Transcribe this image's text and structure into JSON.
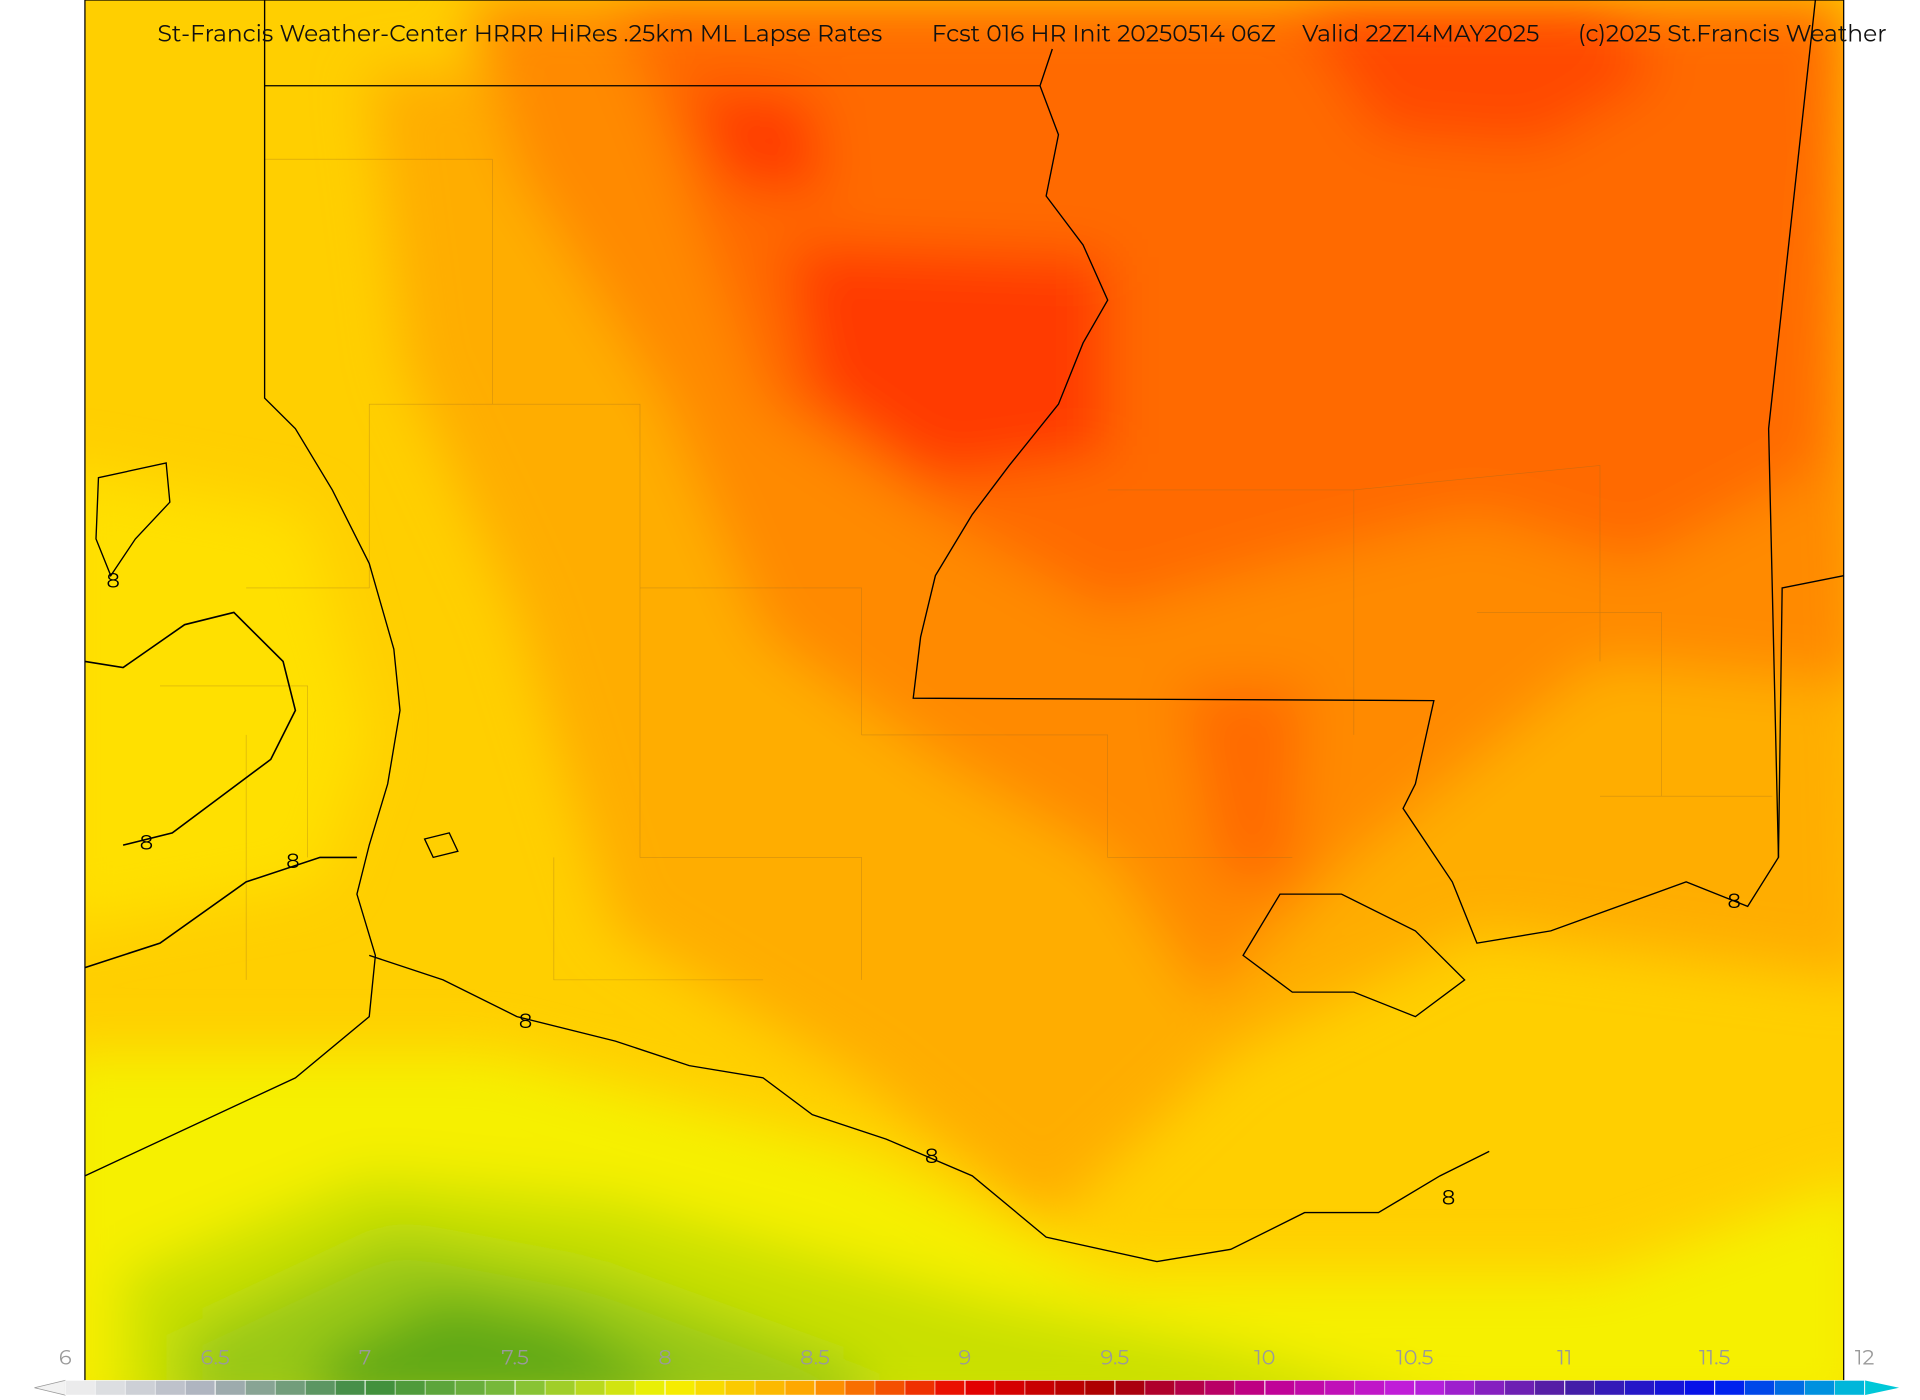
{
  "header": {
    "title": "St-Francis Weather-Center HRRR HiRes .25km ML Lapse Rates",
    "forecast": "Fcst 016 HR Init 20250514 06Z",
    "valid": "Valid 22Z14MAY2025",
    "credit": "(c)2025 St.Francis Weather"
  },
  "colorbar": {
    "range": [
      6,
      12
    ],
    "ticks": [
      6,
      6.5,
      7,
      7.5,
      8,
      8.5,
      9,
      9.5,
      10,
      10.5,
      11,
      11.5,
      12
    ],
    "colors": [
      "#f2f2f2",
      "#a8aeba",
      "#3c8c3c",
      "#7cbd3a",
      "#f5f500",
      "#ff9f00",
      "#e80000",
      "#a80000",
      "#c00090",
      "#c020e0",
      "#4a1ea0",
      "#0010f0",
      "#00c8d8"
    ]
  },
  "contour_level": 8
}
